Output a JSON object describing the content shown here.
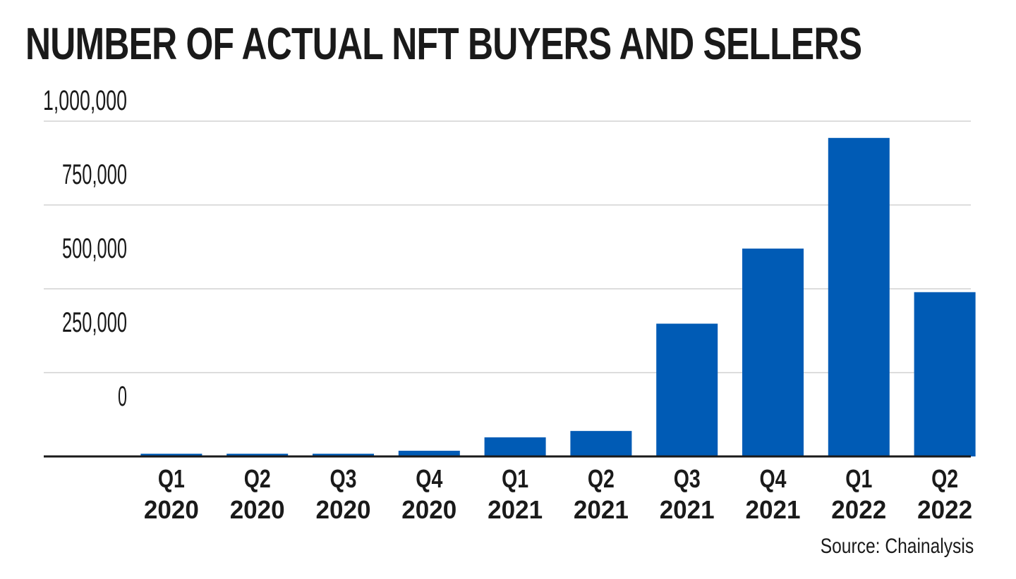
{
  "title": "NUMBER OF ACTUAL NFT BUYERS AND SELLERS",
  "source": "Source: Chainalysis",
  "colors": {
    "bar": "#005bb5",
    "gridline": "#dddddd",
    "axis": "#1a1a1a"
  },
  "chart_data": {
    "type": "bar",
    "title": "NUMBER OF ACTUAL NFT BUYERS AND SELLERS",
    "xlabel": "",
    "ylabel": "",
    "categories": [
      [
        "Q1",
        "2020"
      ],
      [
        "Q2",
        "2020"
      ],
      [
        "Q3",
        "2020"
      ],
      [
        "Q4",
        "2020"
      ],
      [
        "Q1",
        "2021"
      ],
      [
        "Q2",
        "2021"
      ],
      [
        "Q3",
        "2021"
      ],
      [
        "Q4",
        "2021"
      ],
      [
        "Q1",
        "2022"
      ],
      [
        "Q2",
        "2022"
      ]
    ],
    "values": [
      8000,
      8000,
      8000,
      17000,
      57000,
      76000,
      396000,
      620000,
      950000,
      490000
    ],
    "y_tick_labels": [
      "1,000,000",
      "750,000",
      "500,000",
      "250,000",
      "0"
    ],
    "ylim": [
      0,
      1000000
    ],
    "grid": true,
    "legend": "none"
  }
}
